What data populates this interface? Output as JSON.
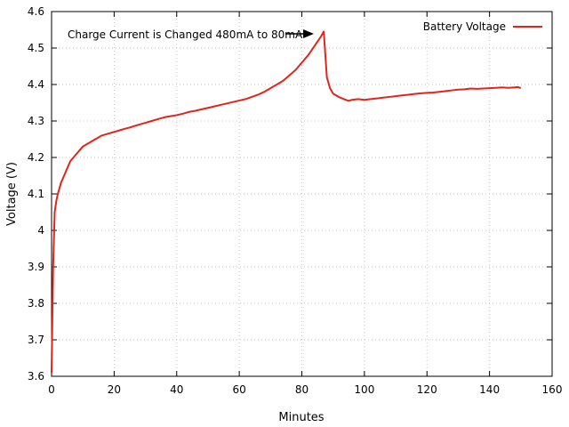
{
  "chart_data": {
    "type": "line",
    "title": "",
    "xlabel": "Minutes",
    "ylabel": "Voltage (V)",
    "xlim": [
      0,
      160
    ],
    "ylim": [
      3.6,
      4.6
    ],
    "xticks": [
      0,
      20,
      40,
      60,
      80,
      100,
      120,
      140,
      160
    ],
    "yticks": [
      3.6,
      3.7,
      3.8,
      3.9,
      4.0,
      4.1,
      4.2,
      4.3,
      4.4,
      4.5,
      4.6
    ],
    "xtick_labels": [
      "0",
      "20",
      "40",
      "60",
      "80",
      "100",
      "120",
      "140",
      "160"
    ],
    "ytick_labels": [
      "3.6",
      "3.7",
      "3.8",
      "3.9",
      "4",
      "4.1",
      "4.2",
      "4.3",
      "4.4",
      "4.5",
      "4.6"
    ],
    "grid": true,
    "legend_position": "top-right",
    "series": [
      {
        "name": "Battery Voltage",
        "color": "#e0251b",
        "x": [
          0,
          0.5,
          1,
          1.5,
          2,
          3,
          4,
          5,
          6,
          7,
          8,
          9,
          10,
          11,
          12,
          13,
          14,
          15,
          16,
          18,
          20,
          22,
          24,
          25,
          26,
          28,
          30,
          32,
          34,
          36,
          38,
          40,
          42,
          44,
          46,
          48,
          50,
          52,
          54,
          56,
          58,
          60,
          62,
          64,
          66,
          68,
          70,
          72,
          74,
          76,
          78,
          80,
          82,
          84,
          86,
          87,
          88,
          89,
          90,
          92,
          94,
          95,
          96,
          98,
          100,
          102,
          104,
          106,
          108,
          110,
          112,
          114,
          116,
          118,
          120,
          122,
          124,
          126,
          128,
          130,
          132,
          134,
          136,
          138,
          140,
          142,
          144,
          146,
          148,
          149,
          150
        ],
        "y": [
          3.61,
          3.9,
          4.05,
          4.08,
          4.1,
          4.13,
          4.15,
          4.17,
          4.19,
          4.2,
          4.21,
          4.22,
          4.23,
          4.235,
          4.24,
          4.245,
          4.25,
          4.255,
          4.26,
          4.265,
          4.27,
          4.275,
          4.28,
          4.282,
          4.285,
          4.29,
          4.295,
          4.3,
          4.305,
          4.31,
          4.313,
          4.316,
          4.32,
          4.325,
          4.328,
          4.332,
          4.336,
          4.34,
          4.344,
          4.348,
          4.352,
          4.356,
          4.36,
          4.366,
          4.372,
          4.38,
          4.39,
          4.4,
          4.41,
          4.425,
          4.44,
          4.46,
          4.48,
          4.505,
          4.53,
          4.545,
          4.42,
          4.39,
          4.375,
          4.365,
          4.358,
          4.355,
          4.358,
          4.36,
          4.358,
          4.36,
          4.362,
          4.364,
          4.366,
          4.368,
          4.37,
          4.372,
          4.374,
          4.376,
          4.377,
          4.378,
          4.38,
          4.382,
          4.384,
          4.386,
          4.387,
          4.389,
          4.388,
          4.389,
          4.39,
          4.391,
          4.392,
          4.391,
          4.392,
          4.393,
          4.39
        ]
      }
    ],
    "annotations": [
      {
        "text": "Charge Current is Changed 480mA to 80mA",
        "arrow_to": [
          87,
          4.545
        ]
      }
    ]
  }
}
